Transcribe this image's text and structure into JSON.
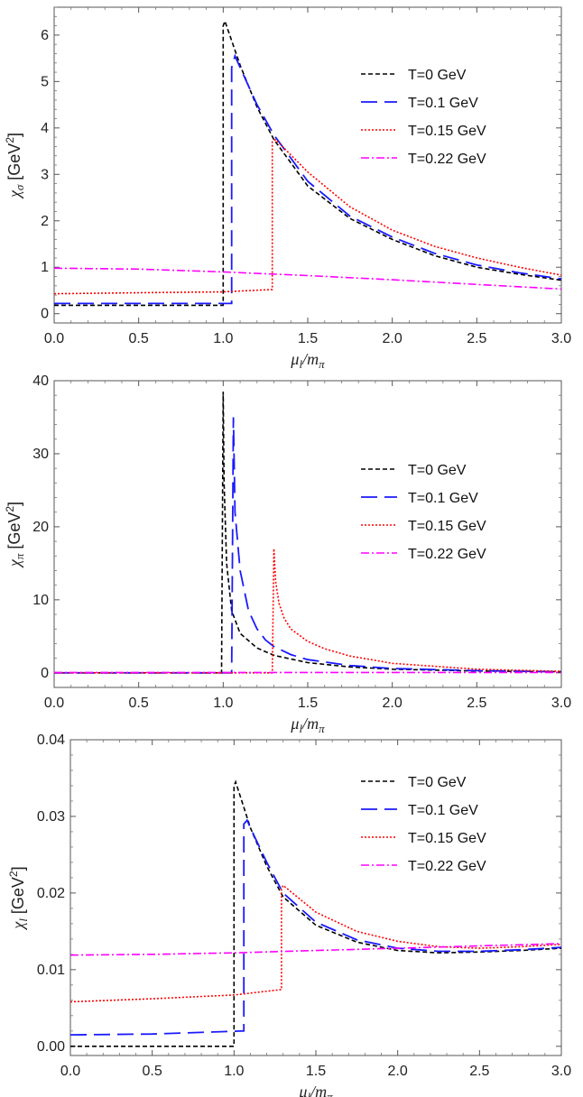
{
  "chart_data": [
    {
      "type": "line",
      "xlabel": "μl/mπ",
      "ylabel": "χσ [GeV²]",
      "ylabel_sym": "χ",
      "ylabel_sub": "σ",
      "ylabel_unit": " [GeV",
      "ylabel_sup": "2",
      "ylabel_close": "]",
      "xlabel_mu": "μ",
      "xlabel_mu_sub": "l",
      "xlabel_m": "/m",
      "xlabel_m_sub": "π",
      "xlim": [
        0,
        3.0
      ],
      "ylim": [
        -0.2,
        6.6
      ],
      "xticks": [
        "0.0",
        "0.5",
        "1.0",
        "1.5",
        "2.0",
        "2.5",
        "3.0"
      ],
      "yticks": [
        "0",
        "1",
        "2",
        "3",
        "4",
        "5",
        "6"
      ],
      "legend_position": "right",
      "series": [
        {
          "name": "T=0 GeV",
          "color": "#000000",
          "x": [
            0,
            1.0,
            1.0,
            1.01,
            1.1,
            1.2,
            1.3,
            1.5,
            1.75,
            2.0,
            2.25,
            2.5,
            2.75,
            3.0
          ],
          "y": [
            0.18,
            0.18,
            6.2,
            6.3,
            5.35,
            4.45,
            3.75,
            2.75,
            2.05,
            1.6,
            1.25,
            1.0,
            0.85,
            0.72
          ]
        },
        {
          "name": "T=0.1 GeV",
          "color": "#1a1aff",
          "x": [
            0,
            1.05,
            1.05,
            1.07,
            1.1,
            1.2,
            1.3,
            1.5,
            1.75,
            2.0,
            2.25,
            2.5,
            2.75,
            3.0
          ],
          "y": [
            0.22,
            0.22,
            5.3,
            5.55,
            5.3,
            4.5,
            3.85,
            2.85,
            2.1,
            1.65,
            1.3,
            1.05,
            0.88,
            0.75
          ]
        },
        {
          "name": "T=0.15 GeV",
          "color": "#ff0000",
          "x": [
            0,
            0.5,
            1.0,
            1.29,
            1.29,
            1.31,
            1.5,
            1.75,
            2.0,
            2.25,
            2.5,
            2.75,
            3.0
          ],
          "y": [
            0.43,
            0.45,
            0.47,
            0.52,
            3.7,
            3.75,
            3.05,
            2.3,
            1.8,
            1.45,
            1.2,
            1.0,
            0.83
          ]
        },
        {
          "name": "T=0.22 GeV",
          "color": "#ff00ff",
          "x": [
            0,
            0.5,
            1.0,
            1.5,
            2.0,
            2.5,
            3.0
          ],
          "y": [
            0.98,
            0.96,
            0.9,
            0.82,
            0.73,
            0.63,
            0.53
          ]
        }
      ]
    },
    {
      "type": "line",
      "xlabel": "μl/mπ",
      "ylabel": "χπ [GeV²]",
      "ylabel_sym": "χ",
      "ylabel_sub": "π",
      "ylabel_unit": " [GeV",
      "ylabel_sup": "2",
      "ylabel_close": "]",
      "xlabel_mu": "μ",
      "xlabel_mu_sub": "l",
      "xlabel_m": "/m",
      "xlabel_m_sub": "π",
      "xlim": [
        0,
        3.0
      ],
      "ylim": [
        -2,
        40
      ],
      "xticks": [
        "0.0",
        "0.5",
        "1.0",
        "1.5",
        "2.0",
        "2.5",
        "3.0"
      ],
      "yticks": [
        "0",
        "10",
        "20",
        "30",
        "40"
      ],
      "legend_position": "right",
      "series": [
        {
          "name": "T=0 GeV",
          "color": "#000000",
          "x": [
            0,
            0.99,
            1.0,
            1.005,
            1.02,
            1.05,
            1.1,
            1.2,
            1.3,
            1.5,
            1.75,
            2.0,
            2.5,
            3.0
          ],
          "y": [
            0,
            0,
            38.5,
            26,
            15,
            8.5,
            5.4,
            3.4,
            2.4,
            1.4,
            0.8,
            0.5,
            0.25,
            0.15
          ]
        },
        {
          "name": "T=0.1 GeV",
          "color": "#1a1aff",
          "x": [
            0,
            1.05,
            1.06,
            1.07,
            1.1,
            1.15,
            1.2,
            1.25,
            1.3,
            1.4,
            1.5,
            1.75,
            2.0,
            2.5,
            3.0
          ],
          "y": [
            0,
            0,
            35,
            22,
            14,
            8.5,
            6,
            4.5,
            3.6,
            2.5,
            1.8,
            1.0,
            0.6,
            0.3,
            0.15
          ]
        },
        {
          "name": "T=0.15 GeV",
          "color": "#ff0000",
          "x": [
            0,
            1.29,
            1.3,
            1.31,
            1.33,
            1.36,
            1.4,
            1.5,
            1.6,
            1.75,
            2.0,
            2.5,
            3.0
          ],
          "y": [
            0,
            0,
            17,
            12.5,
            9.5,
            7.5,
            6,
            4.3,
            3.3,
            2.3,
            1.3,
            0.5,
            0.2
          ]
        },
        {
          "name": "T=0.22 GeV",
          "color": "#ff00ff",
          "x": [
            0,
            1.0,
            2.0,
            3.0
          ],
          "y": [
            0.05,
            0.05,
            0.05,
            0.05
          ]
        }
      ]
    },
    {
      "type": "line",
      "xlabel": "μl/mπ",
      "ylabel": "χl [GeV²]",
      "ylabel_sym": "χ",
      "ylabel_sub": "l",
      "ylabel_unit": " [GeV",
      "ylabel_sup": "2",
      "ylabel_close": "]",
      "xlabel_mu": "μ",
      "xlabel_mu_sub": "l",
      "xlabel_m": "/m",
      "xlabel_m_sub": "π",
      "xlim": [
        0,
        3.0
      ],
      "ylim": [
        -0.0012,
        0.04
      ],
      "xticks": [
        "0.0",
        "0.5",
        "1.0",
        "1.5",
        "2.0",
        "2.5",
        "3.0"
      ],
      "yticks": [
        "0.00",
        "0.01",
        "0.02",
        "0.03",
        "0.04"
      ],
      "legend_position": "top-right",
      "series": [
        {
          "name": "T=0 GeV",
          "color": "#000000",
          "x": [
            0,
            1.0,
            1.0,
            1.01,
            1.1,
            1.2,
            1.3,
            1.5,
            1.75,
            2.0,
            2.25,
            2.5,
            2.75,
            3.0
          ],
          "y": [
            0.0,
            0.0,
            0.034,
            0.0345,
            0.0285,
            0.0235,
            0.0195,
            0.0158,
            0.0136,
            0.0125,
            0.0122,
            0.0123,
            0.0125,
            0.0128
          ]
        },
        {
          "name": "T=0.1 GeV",
          "color": "#1a1aff",
          "x": [
            0,
            0.5,
            1.06,
            1.06,
            1.08,
            1.1,
            1.2,
            1.3,
            1.5,
            1.75,
            2.0,
            2.25,
            2.5,
            2.75,
            3.0
          ],
          "y": [
            0.0015,
            0.0016,
            0.002,
            0.029,
            0.0295,
            0.0285,
            0.024,
            0.02,
            0.0162,
            0.0139,
            0.0128,
            0.0124,
            0.0124,
            0.0126,
            0.0129
          ]
        },
        {
          "name": "T=0.15 GeV",
          "color": "#ff0000",
          "x": [
            0,
            0.5,
            1.0,
            1.29,
            1.29,
            1.3,
            1.5,
            1.75,
            2.0,
            2.25,
            2.5,
            2.75,
            3.0
          ],
          "y": [
            0.0058,
            0.0062,
            0.0067,
            0.0074,
            0.0205,
            0.021,
            0.0175,
            0.015,
            0.0137,
            0.013,
            0.0128,
            0.013,
            0.0133
          ]
        },
        {
          "name": "T=0.22 GeV",
          "color": "#ff00ff",
          "x": [
            0,
            0.5,
            1.0,
            1.5,
            2.0,
            2.5,
            3.0
          ],
          "y": [
            0.0119,
            0.012,
            0.0122,
            0.0125,
            0.0128,
            0.0131,
            0.0134
          ]
        }
      ]
    }
  ]
}
